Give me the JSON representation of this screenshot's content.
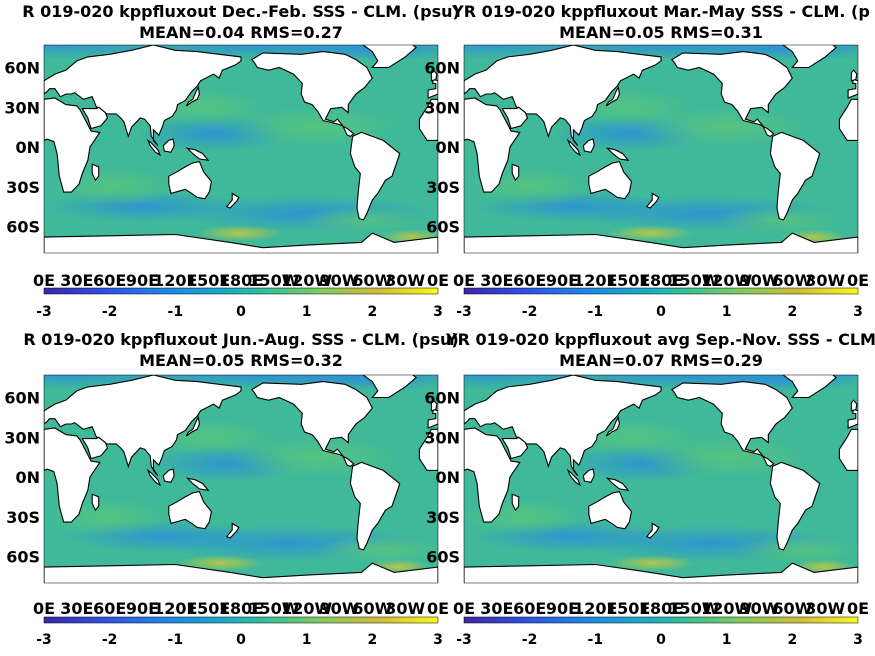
{
  "chart_data": [
    {
      "type": "heatmap",
      "title": "R 019-020 kppfluxout  Dec.-Feb. SSS - CLM. (psu)",
      "subtitle": "MEAN=0.04   RMS=0.27",
      "x_ticks": [
        "0E",
        "30E",
        "60E",
        "90E",
        "120E",
        "150E",
        "180E",
        "150W",
        "120W",
        "90W",
        "60W",
        "30W",
        "0E"
      ],
      "y_ticks": [
        "60N",
        "30N",
        "0N",
        "30S",
        "60S"
      ],
      "colorbar": {
        "ticks": [
          "-3",
          "-2",
          "-1",
          "0",
          "1",
          "2",
          "3"
        ],
        "range": [
          -3,
          3
        ],
        "colormap": "parula"
      },
      "mean": 0.04,
      "rms": 0.27
    },
    {
      "type": "heatmap",
      "title": "YR 019-020 kppfluxout Mar.-May SSS - CLM. (p",
      "subtitle": "MEAN=0.05   RMS=0.31",
      "x_ticks": [
        "0E",
        "30E",
        "60E",
        "90E",
        "120E",
        "150E",
        "180E",
        "150W",
        "120W",
        "90W",
        "60W",
        "30W",
        "0E"
      ],
      "y_ticks": [
        "60N",
        "30N",
        "0N",
        "30S",
        "60S"
      ],
      "colorbar": {
        "ticks": [
          "-3",
          "-2",
          "-1",
          "0",
          "1",
          "2",
          "3"
        ],
        "range": [
          -3,
          3
        ],
        "colormap": "parula"
      },
      "mean": 0.05,
      "rms": 0.31
    },
    {
      "type": "heatmap",
      "title": "R 019-020 kppfluxout Jun.-Aug. SSS - CLM. (psu)",
      "subtitle": "MEAN=0.05   RMS=0.32",
      "x_ticks": [
        "0E",
        "30E",
        "60E",
        "90E",
        "120E",
        "150E",
        "180E",
        "150W",
        "120W",
        "90W",
        "60W",
        "30W",
        "0E"
      ],
      "y_ticks": [
        "60N",
        "30N",
        "0N",
        "30S",
        "60S"
      ],
      "colorbar": {
        "ticks": [
          "-3",
          "-2",
          "-1",
          "0",
          "1",
          "2",
          "3"
        ],
        "range": [
          -3,
          3
        ],
        "colormap": "parula"
      },
      "mean": 0.05,
      "rms": 0.32
    },
    {
      "type": "heatmap",
      "title": "YR 019-020 kppfluxout avg Sep.-Nov. SSS - CLM",
      "subtitle": "MEAN=0.07   RMS=0.29",
      "x_ticks": [
        "0E",
        "30E",
        "60E",
        "90E",
        "120E",
        "150E",
        "180E",
        "150W",
        "120W",
        "90W",
        "60W",
        "30W",
        "0E"
      ],
      "y_ticks": [
        "60N",
        "30N",
        "0N",
        "30S",
        "60S"
      ],
      "colorbar": {
        "ticks": [
          "-3",
          "-2",
          "-1",
          "0",
          "1",
          "2",
          "3"
        ],
        "range": [
          -3,
          3
        ],
        "colormap": "parula"
      },
      "mean": 0.07,
      "rms": 0.29
    }
  ],
  "colors": {
    "land": "#ffffff",
    "ocean_base": "#3fb99a",
    "coast": "#000000",
    "colorbar_low": "#3e26a8",
    "colorbar_mid": "#20b8aa",
    "colorbar_high": "#f9fb15"
  }
}
